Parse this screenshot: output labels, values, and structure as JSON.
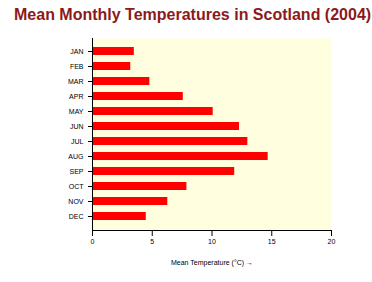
{
  "chart_data": {
    "type": "bar",
    "title": "Mean Monthly Temperatures in Scotland (2004)",
    "orientation": "horizontal",
    "categories": [
      "JAN",
      "FEB",
      "MAR",
      "APR",
      "MAY",
      "JUN",
      "JUL",
      "AUG",
      "SEP",
      "OCT",
      "NOV",
      "DEC"
    ],
    "values": [
      3.5,
      3.2,
      4.8,
      7.6,
      10.1,
      12.3,
      13.0,
      14.7,
      11.9,
      7.9,
      6.3,
      4.5
    ],
    "color": "#ff0000",
    "x_label": "Mean Temperature (°C)",
    "xlim": [
      0,
      20
    ],
    "xticks": [
      0,
      5,
      10,
      15,
      20
    ],
    "grid": false
  }
}
